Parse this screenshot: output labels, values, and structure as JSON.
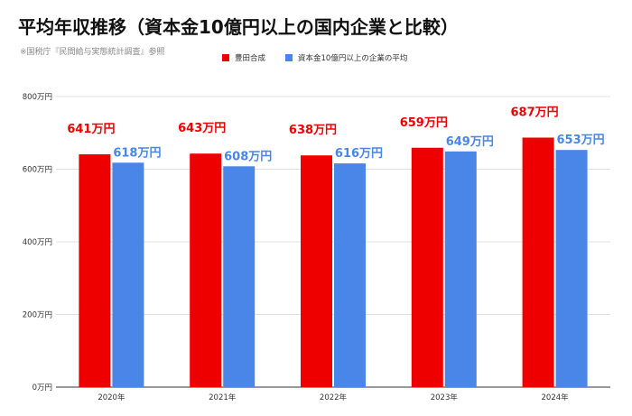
{
  "title": "平均年収推移（資本金10億円以上の国内企業と比較）",
  "subtitle": "※国税庁『民間給与実態統計調査』参照",
  "chart_data": {
    "type": "bar",
    "categories": [
      "2020年",
      "2021年",
      "2022年",
      "2023年",
      "2024年"
    ],
    "series": [
      {
        "name": "豊田合成",
        "color": "#ee0000",
        "values": [
          641,
          643,
          638,
          659,
          687
        ],
        "labels": [
          "641万円",
          "643万円",
          "638万円",
          "659万円",
          "687万円"
        ]
      },
      {
        "name": "資本金10億円以上の企業の平均",
        "color": "#4a86e8",
        "values": [
          618,
          608,
          616,
          649,
          653
        ],
        "labels": [
          "618万円",
          "608万円",
          "616万円",
          "649万円",
          "653万円"
        ]
      }
    ],
    "ylim": [
      0,
      800
    ],
    "yticks": [
      0,
      200,
      400,
      600,
      800
    ],
    "ytick_labels": [
      "0万円",
      "200万円",
      "400万円",
      "600万円",
      "800万円"
    ],
    "legend_position": "top-center",
    "grid": true
  }
}
